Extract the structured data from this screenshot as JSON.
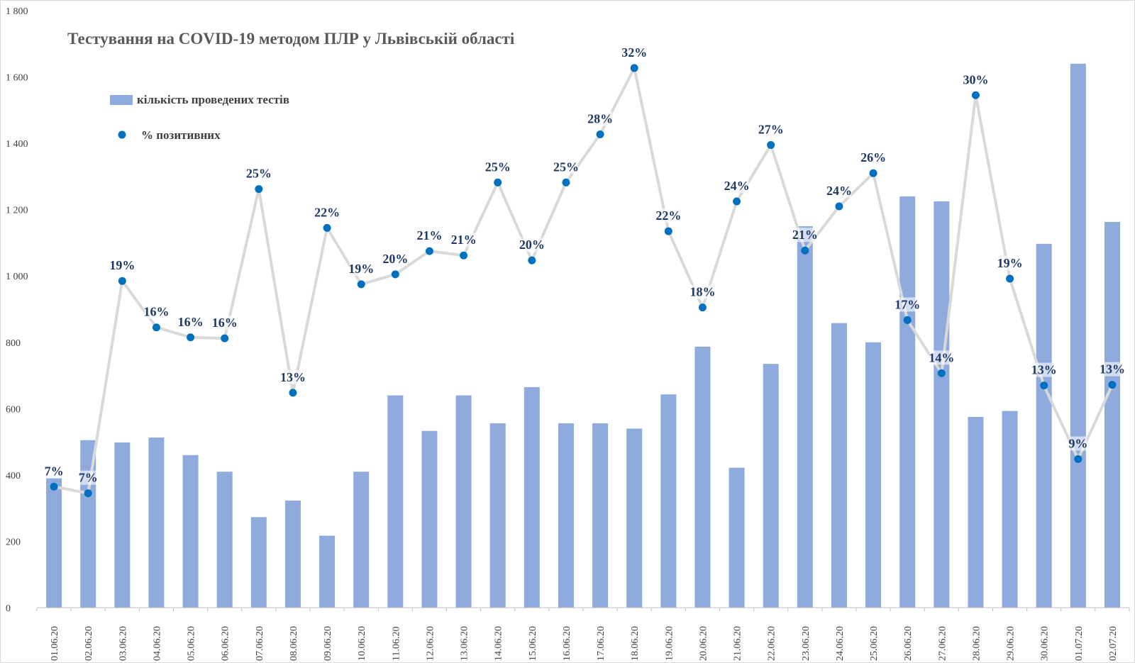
{
  "chart_data": {
    "type": "bar+line",
    "title": "Тестування на COVID-19 методом ПЛР у Львівській області",
    "categories": [
      "01.06.20",
      "02.06.20",
      "03.06.20",
      "04.06.20",
      "05.06.20",
      "06.06.20",
      "07.06.20",
      "08.06.20",
      "09.06.20",
      "10.06.20",
      "11.06.20",
      "12.06.20",
      "13.06.20",
      "14.06.20",
      "15.06.20",
      "16.06.20",
      "17.06.20",
      "18.06.20",
      "19.06.20",
      "20.06.20",
      "21.06.20",
      "22.06.20",
      "23.06.20",
      "24.06.20",
      "25.06.20",
      "26.06.20",
      "27.06.20",
      "28.06.20",
      "29.06.20",
      "30.06.20",
      "01.07.20",
      "02.07.20"
    ],
    "yticks": [
      "0",
      "200",
      "400",
      "600",
      "800",
      "1 000",
      "1 200",
      "1 400",
      "1 600",
      "1 800"
    ],
    "ylim": [
      0,
      1800
    ],
    "series": [
      {
        "name": "кількість проведених тестів",
        "type": "bar",
        "color": "#8faadc",
        "values": [
          390,
          505,
          498,
          513,
          460,
          410,
          273,
          323,
          217,
          410,
          640,
          533,
          640,
          556,
          665,
          556,
          556,
          540,
          643,
          787,
          422,
          735,
          1150,
          858,
          800,
          1240,
          1225,
          575,
          593,
          1097,
          1640,
          1163
        ]
      },
      {
        "name": "% позитивних",
        "type": "line",
        "color": "#0070c0",
        "line_color": "#d9d9d9",
        "labels": [
          "7%",
          "7%",
          "19%",
          "16%",
          "16%",
          "16%",
          "25%",
          "13%",
          "22%",
          "19%",
          "20%",
          "21%",
          "21%",
          "25%",
          "20%",
          "25%",
          "28%",
          "32%",
          "22%",
          "18%",
          "24%",
          "27%",
          "21%",
          "24%",
          "26%",
          "17%",
          "14%",
          "30%",
          "19%",
          "13%",
          "9%",
          "13%"
        ],
        "values": [
          7,
          7,
          19,
          16,
          16,
          16,
          25,
          13,
          22,
          19,
          20,
          21,
          21,
          25,
          20,
          25,
          28,
          32,
          22,
          18,
          24,
          27,
          21,
          24,
          26,
          17,
          14,
          30,
          19,
          13,
          9,
          13
        ],
        "marker_levels": [
          365,
          345,
          985,
          845,
          815,
          812,
          1262,
          648,
          1145,
          975,
          1005,
          1075,
          1062,
          1282,
          1047,
          1282,
          1427,
          1627,
          1135,
          905,
          1225,
          1395,
          1077,
          1210,
          1310,
          867,
          707,
          1545,
          992,
          670,
          448,
          672
        ]
      }
    ],
    "legend": [
      {
        "label": "кількість проведених тестів",
        "swatch": "bar"
      },
      {
        "label": "% позитивних",
        "swatch": "dot"
      }
    ]
  }
}
